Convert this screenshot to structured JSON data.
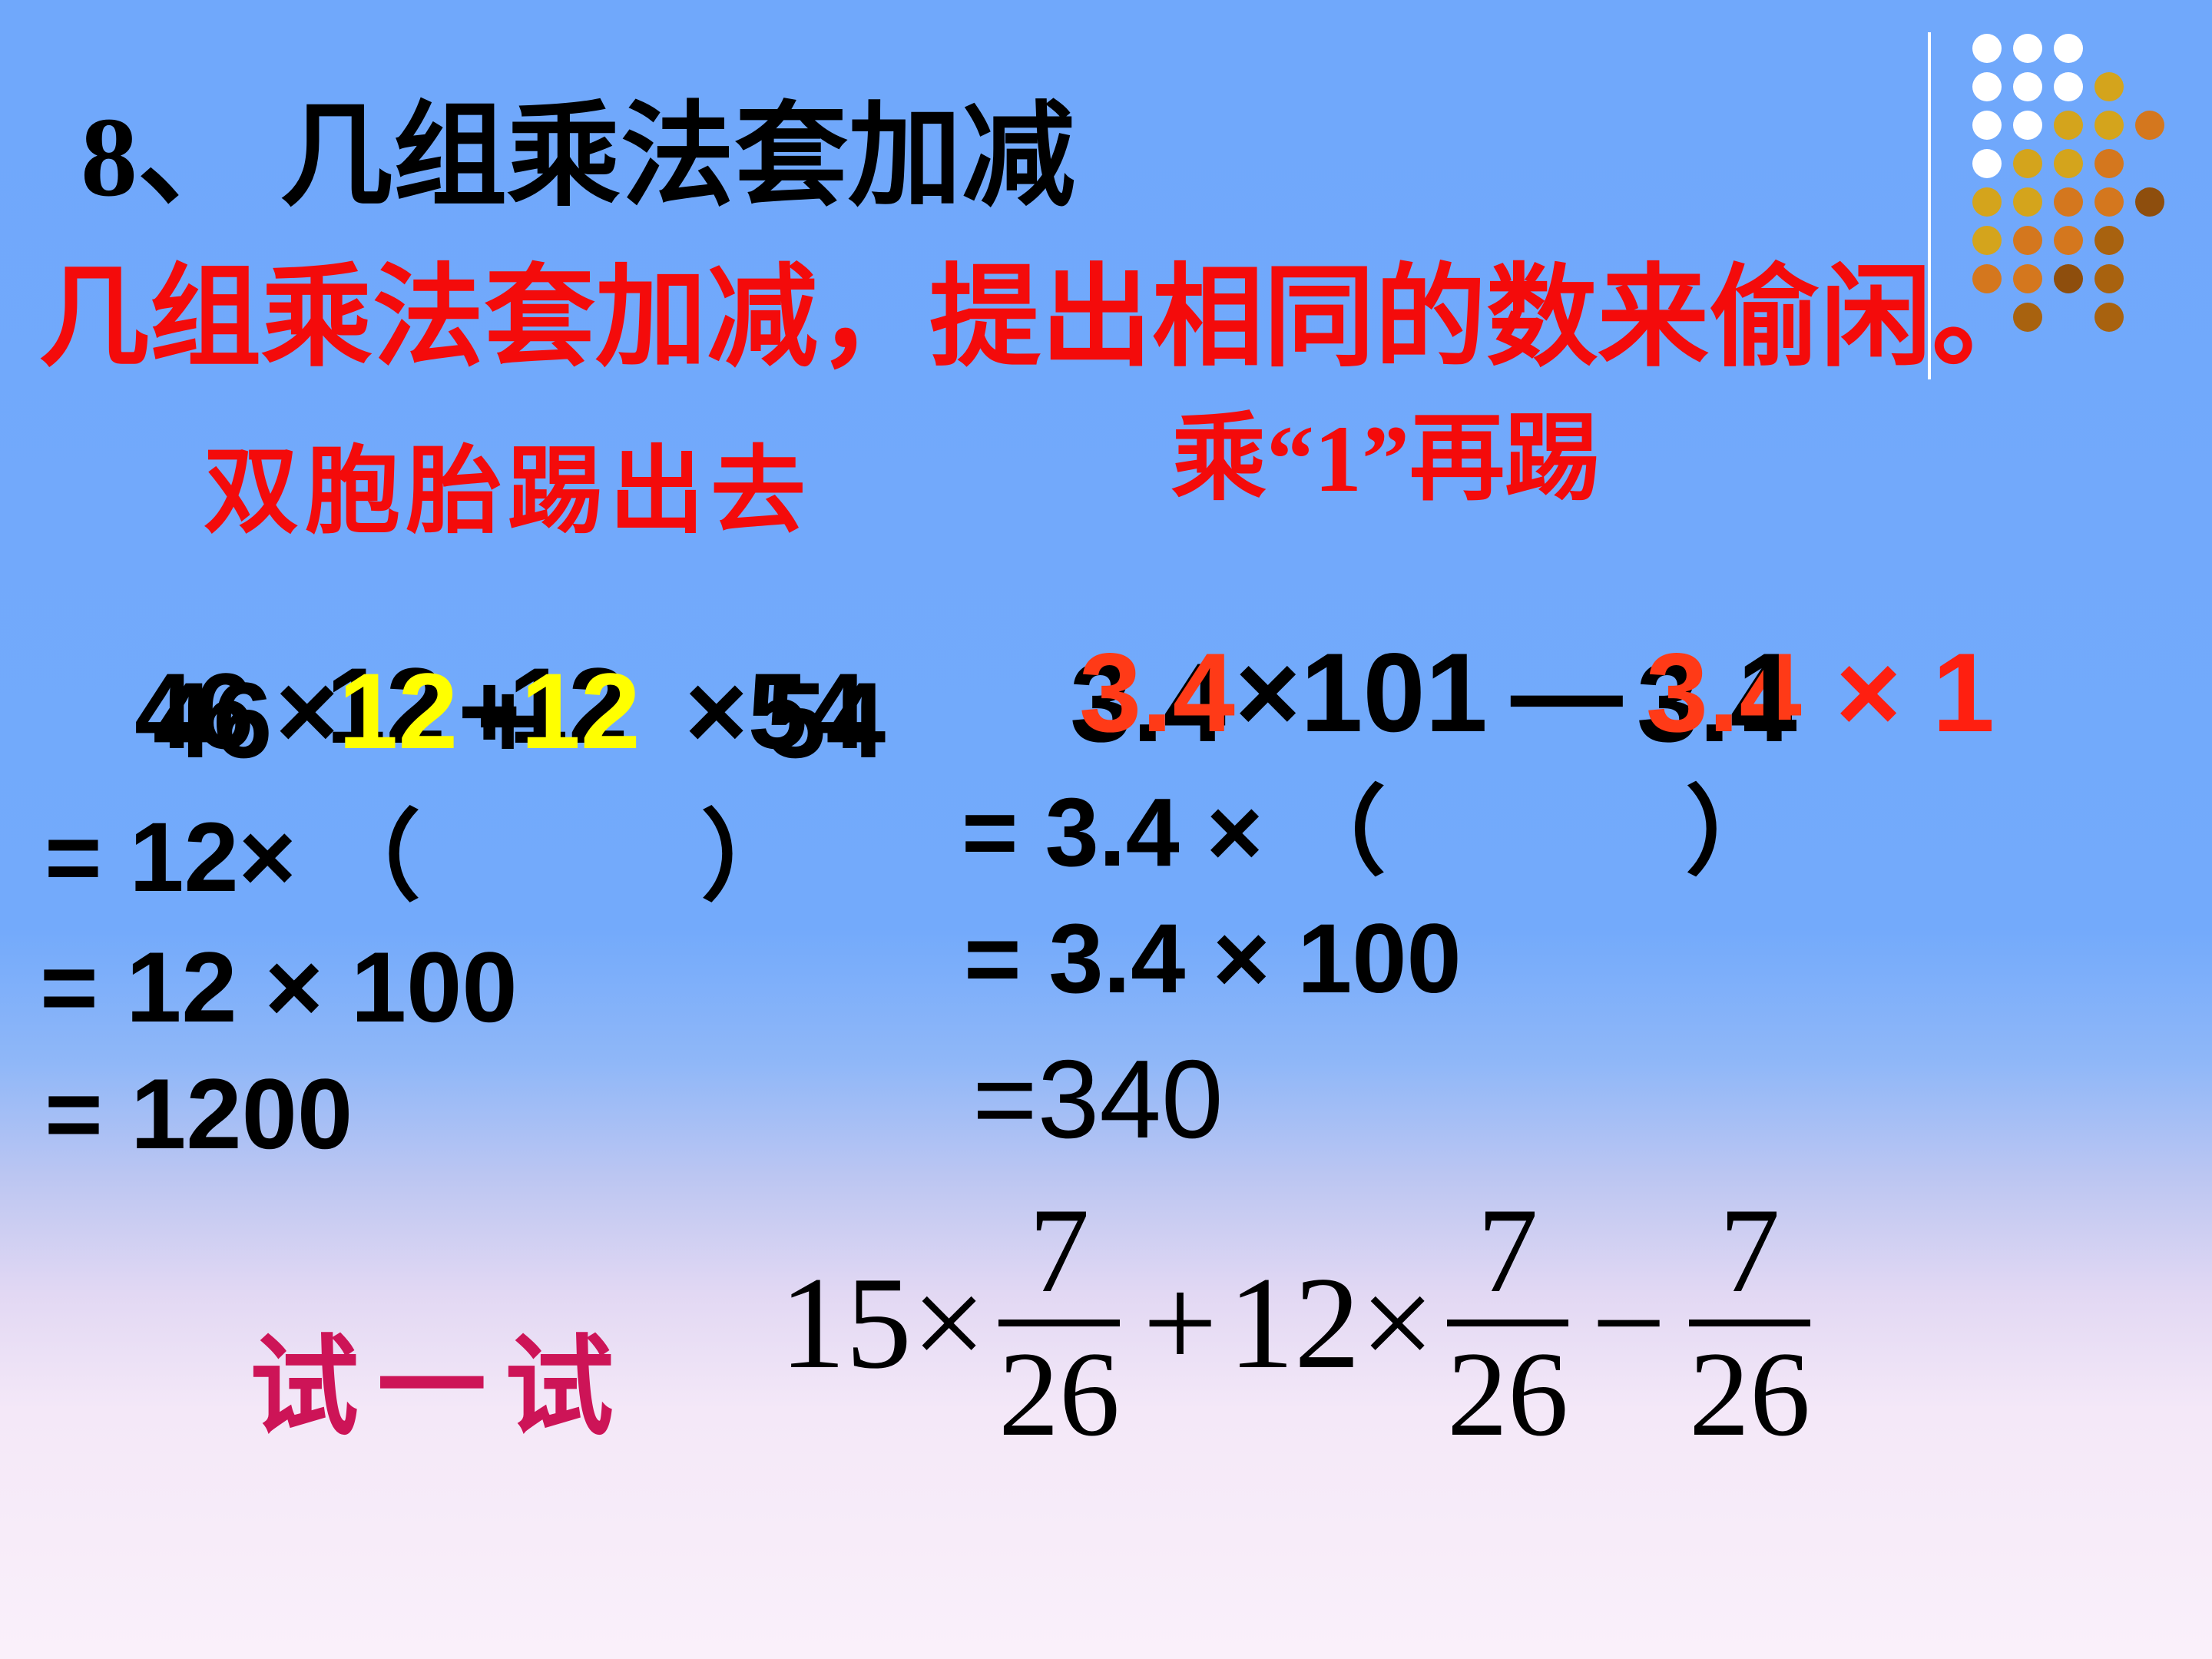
{
  "slide": {
    "title": "8、 几组乘法套加减",
    "subtitle": "几组乘法套加减，提出相同的数来偷闲。",
    "hint_left": "双胞胎踢出去",
    "hint_right": "乘“1”再踢",
    "try_label": "试一试"
  },
  "left_problem": {
    "num_a": "46",
    "times_1": "×",
    "num_b1": "12",
    "plus": "+",
    "num_b2": "12",
    "times_2": "×",
    "num_c": "54",
    "step1_prefix": "= 12×",
    "paren_open": "（",
    "paren_close": "）",
    "step2": "= 12 × 100",
    "step3": "= 1200"
  },
  "right_problem": {
    "num_a1": "3.4",
    "times_101": "×101",
    "minus": "—",
    "num_a2": "3.4",
    "overlap_one": "1",
    "times_one": "× 1",
    "step1_prefix": "= 3.4 ×",
    "paren_open": "（",
    "paren_close": "）",
    "step2": "= 3.4 × 100",
    "step3": "=340"
  },
  "practice": {
    "coef1": "15×",
    "frac1": {
      "num": "7",
      "den": "26"
    },
    "plus": "+",
    "coef2": "12×",
    "frac2": {
      "num": "7",
      "den": "26"
    },
    "minus": "−",
    "frac3": {
      "num": "7",
      "den": "26"
    }
  },
  "decoration": {
    "dots_rows": [
      "www..",
      "wwwg.",
      "wwggo",
      "wggo.",
      "ggood",
      "goob.",
      "oodb.",
      ".b.b."
    ],
    "palette": {
      "w": "#FFFFFF",
      "g": "#D4A41C",
      "o": "#D4771E",
      "b": "#A8620F",
      "d": "#8E4E0D"
    }
  },
  "colors": {
    "background_top": "#71A8FB",
    "background_bottom": "#FAF0FA",
    "title_text": "#000000",
    "red_text": "#F40B0B",
    "yellow_highlight": "#FFFF00",
    "orange_red": "#FF3A17",
    "bright_red": "#FF1F10",
    "magenta_try": "#CD1457"
  }
}
